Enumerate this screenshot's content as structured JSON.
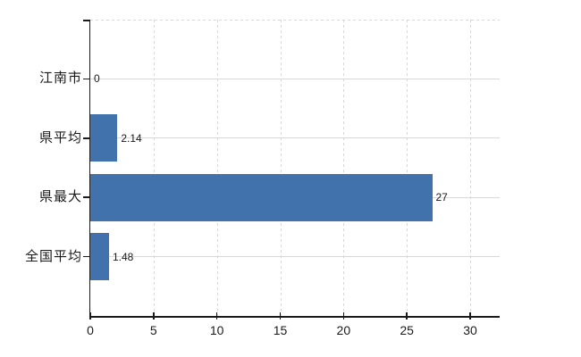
{
  "chart_data": {
    "type": "bar",
    "orientation": "horizontal",
    "title": "",
    "xlabel": "",
    "ylabel": "",
    "categories": [
      "江南市",
      "県平均",
      "県最大",
      "全国平均"
    ],
    "values": [
      0,
      2.14,
      27,
      1.48
    ],
    "value_labels": [
      "0",
      "2.14",
      "27",
      "1.48"
    ],
    "xlim": [
      0,
      30
    ],
    "xticks": [
      0,
      5,
      10,
      15,
      20,
      25,
      30
    ],
    "xtick_labels": [
      "0",
      "5",
      "10",
      "15",
      "20",
      "25",
      "30"
    ],
    "grid": "on",
    "legend": "none",
    "colors": {
      "bar": "#4272ac",
      "grid": "#d8d8d8",
      "axis": "#1a1a1a",
      "text": "#1a1a1a",
      "background": "#ffffff"
    }
  }
}
